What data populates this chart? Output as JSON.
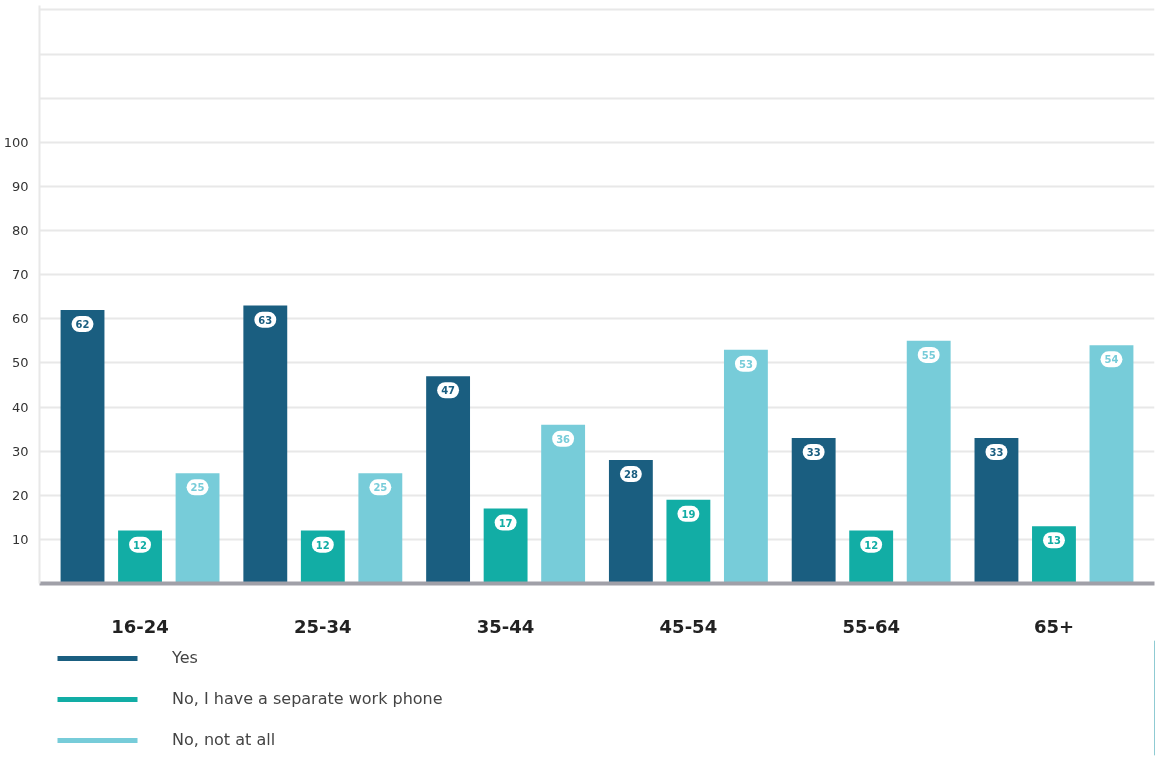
{
  "chart_data": {
    "type": "bar",
    "categories": [
      "16-24",
      "25-34",
      "35-44",
      "45-54",
      "55-64",
      "65+"
    ],
    "series": [
      {
        "name": "Yes",
        "color": "#1a5e80",
        "values": [
          62,
          63,
          47,
          28,
          33,
          33
        ]
      },
      {
        "name": "No, I have a separate work phone",
        "color": "#12ada5",
        "values": [
          12,
          12,
          17,
          19,
          12,
          13
        ]
      },
      {
        "name": "No, not at all",
        "color": "#77ccd9",
        "values": [
          25,
          25,
          36,
          53,
          55,
          54
        ]
      }
    ],
    "ylim": [
      0,
      131
    ],
    "yticks": [
      10,
      20,
      30,
      40,
      50,
      60,
      70,
      80,
      90,
      100,
      {
        "value": 110,
        "label": null
      },
      {
        "value": 120,
        "label": null
      },
      {
        "value": 130,
        "label": null
      }
    ],
    "grid": "y",
    "legend": "bottom",
    "data_labels": true
  }
}
